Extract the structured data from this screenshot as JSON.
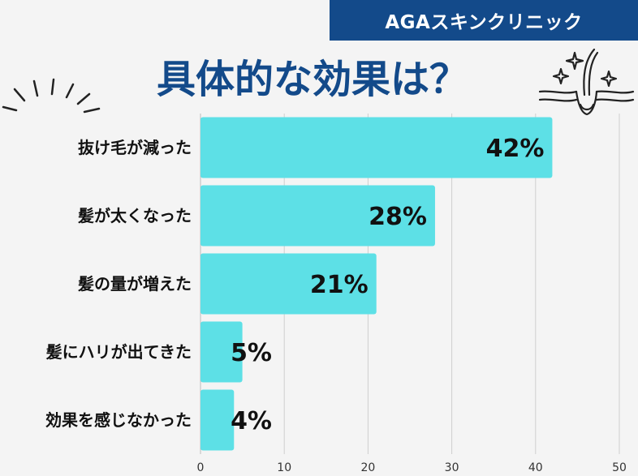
{
  "brand": "AGAスキンクリニック",
  "title": "具体的な効果は？",
  "colors": {
    "bar": "#5de0e6",
    "banner": "#134a8a",
    "title": "#134a8a",
    "grid": "#cfcfcf"
  },
  "chart_data": {
    "type": "bar",
    "orientation": "horizontal",
    "categories": [
      "抜け毛が減った",
      "髪が太くなった",
      "髪の量が増えた",
      "髪にハリが出てきた",
      "効果を感じなかった"
    ],
    "values": [
      42,
      28,
      21,
      5,
      4
    ],
    "value_labels": [
      "42%",
      "28%",
      "21%",
      "5%",
      "4%"
    ],
    "xlim": [
      0,
      50
    ],
    "xticks": [
      "0",
      "10",
      "20",
      "30",
      "40",
      "50"
    ],
    "grid": true
  }
}
